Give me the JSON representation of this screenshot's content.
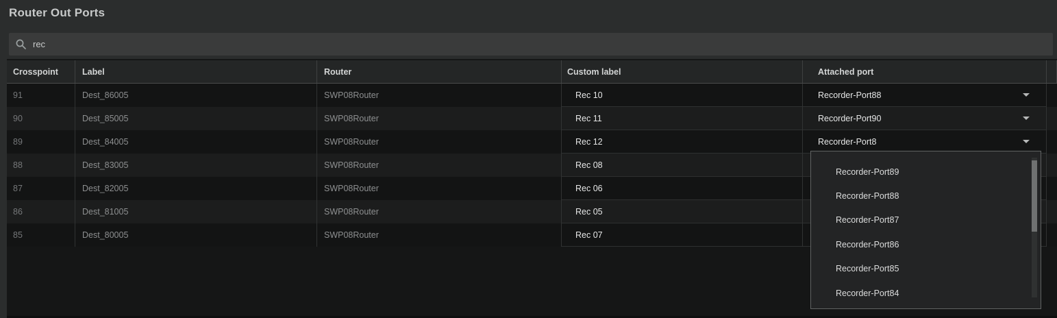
{
  "window": {
    "title": "Router Out Ports"
  },
  "search": {
    "value": "rec",
    "icon": "search-icon",
    "placeholder": ""
  },
  "table": {
    "columns": [
      "Crosspoint",
      "Label",
      "Router",
      "Custom label",
      "Attached port"
    ],
    "rows": [
      {
        "crosspoint": "91",
        "label": "Dest_86005",
        "router": "SWP08Router",
        "custom_label": "Rec 10",
        "attached_port": "Recorder-Port88"
      },
      {
        "crosspoint": "90",
        "label": "Dest_85005",
        "router": "SWP08Router",
        "custom_label": "Rec 11",
        "attached_port": "Recorder-Port90"
      },
      {
        "crosspoint": "89",
        "label": "Dest_84005",
        "router": "SWP08Router",
        "custom_label": "Rec 12",
        "attached_port": "Recorder-Port8"
      },
      {
        "crosspoint": "88",
        "label": "Dest_83005",
        "router": "SWP08Router",
        "custom_label": "Rec 08",
        "attached_port": ""
      },
      {
        "crosspoint": "87",
        "label": "Dest_82005",
        "router": "SWP08Router",
        "custom_label": "Rec 06",
        "attached_port": ""
      },
      {
        "crosspoint": "86",
        "label": "Dest_81005",
        "router": "SWP08Router",
        "custom_label": "Rec 05",
        "attached_port": ""
      },
      {
        "crosspoint": "85",
        "label": "Dest_80005",
        "router": "SWP08Router",
        "custom_label": "Rec 07",
        "attached_port": ""
      }
    ]
  },
  "attached_port_dropdown": {
    "options": [
      "Recorder-Port89",
      "Recorder-Port88",
      "Recorder-Port87",
      "Recorder-Port86",
      "Recorder-Port85",
      "Recorder-Port84"
    ]
  },
  "colors": {
    "page_bg": "#2b2d2d",
    "table_bg": "#151616",
    "row_dark": "#131414",
    "row_light": "#1c1d1d",
    "header_bg": "#242626",
    "search_bg": "#3a3b3b",
    "text_bright": "#e6e7e7",
    "text_dim": "#8d8f90",
    "dropdown_bg": "#232425",
    "dropdown_border": "#616363",
    "scrollbar_thumb": "#6f7171"
  }
}
